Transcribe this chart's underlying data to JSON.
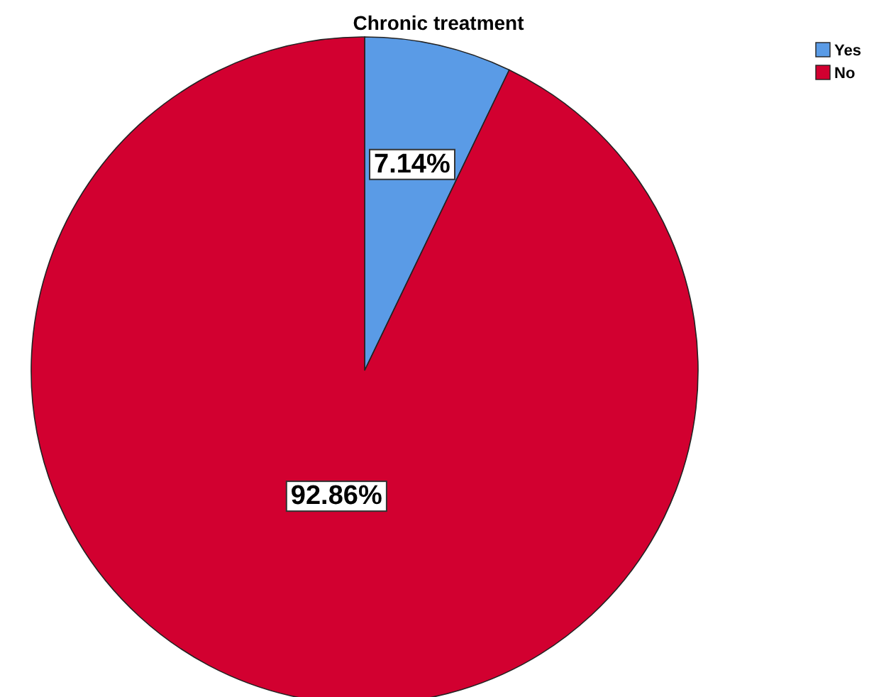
{
  "chart_data": {
    "type": "pie",
    "title": "Chronic treatment",
    "categories": [
      "Yes",
      "No"
    ],
    "values": [
      7.14,
      92.86
    ],
    "colors": [
      "#5a9be6",
      "#d20030"
    ],
    "value_labels": [
      "7.14%",
      "92.86%"
    ],
    "legend": "top right"
  }
}
